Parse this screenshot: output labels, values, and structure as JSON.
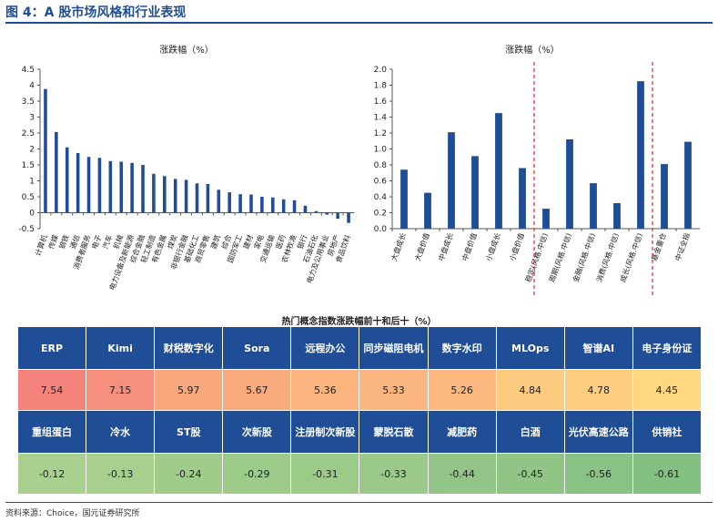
{
  "figure_title": "图 4：A 股市场风格和行业表现",
  "source": "资料来源：Choice，国元证券研究所",
  "chart_data": [
    {
      "type": "bar",
      "title": "涨跌幅（%）",
      "categories": [
        "计算机",
        "传媒",
        "钢铁",
        "通信",
        "消费者服务",
        "电子",
        "汽车",
        "机械",
        "电力设备及新能源",
        "综合金融",
        "轻工制造",
        "有色金属",
        "煤炭",
        "非银行金融",
        "基础化工",
        "商贸零售",
        "建筑",
        "综合",
        "国防军工",
        "建材",
        "家电",
        "交通运输",
        "医药",
        "农林牧渔",
        "银行",
        "石油石化",
        "电力及公用事业",
        "房地产",
        "食品饮料"
      ],
      "values": [
        3.88,
        2.53,
        2.05,
        1.87,
        1.75,
        1.72,
        1.62,
        1.6,
        1.56,
        1.5,
        1.22,
        1.15,
        1.06,
        1.03,
        0.92,
        0.9,
        0.72,
        0.64,
        0.58,
        0.57,
        0.5,
        0.48,
        0.42,
        0.39,
        0.22,
        0.05,
        -0.06,
        -0.19,
        -0.32
      ],
      "ylim": [
        -0.5,
        4.5
      ],
      "yticks": [
        "-0.5",
        "0",
        "0.5",
        "1",
        "1.5",
        "2",
        "2.5",
        "3",
        "3.5",
        "4",
        "4.5"
      ],
      "color": "#1f4e96"
    },
    {
      "type": "bar",
      "title": "涨跌幅（%）",
      "categories": [
        "大盘成长",
        "大盘价值",
        "中盘成长",
        "中盘价值",
        "小盘成长",
        "小盘价值",
        "稳定(风格.中信)",
        "周期(风格.中信)",
        "金融(风格.中信)",
        "消费(风格.中信)",
        "成长(风格.中信)",
        "基金重仓",
        "中证全指"
      ],
      "values": [
        0.74,
        0.45,
        1.21,
        0.91,
        1.45,
        0.76,
        0.25,
        1.12,
        0.57,
        0.32,
        1.85,
        0.81,
        1.09
      ],
      "ylim": [
        0,
        2.0
      ],
      "yticks": [
        "0.0",
        "0.2",
        "0.4",
        "0.6",
        "0.8",
        "1.0",
        "1.2",
        "1.4",
        "1.6",
        "1.8",
        "2.0"
      ],
      "color": "#1f4e96",
      "divider_color": "#d9262b"
    }
  ],
  "table": {
    "title": "热门概念指数涨跌幅前十和后十（%）",
    "top_names": [
      "ERP",
      "Kimi",
      "财税数字化",
      "Sora",
      "远程办公",
      "同步磁阻电机",
      "数字水印",
      "MLOps",
      "智谱AI",
      "电子身份证"
    ],
    "top_values": [
      "7.54",
      "7.15",
      "5.97",
      "5.67",
      "5.36",
      "5.33",
      "5.26",
      "4.84",
      "4.78",
      "4.45"
    ],
    "top_colors": [
      "#f4837b",
      "#f68f7b",
      "#f9a77c",
      "#faab7d",
      "#fbb47e",
      "#fbb57e",
      "#fcb87f",
      "#fdcb80",
      "#fecd80",
      "#ffd781"
    ],
    "bottom_names": [
      "重组蛋白",
      "冷水",
      "ST股",
      "次新股",
      "注册制次新股",
      "蒙脱石散",
      "减肥药",
      "白酒",
      "光伏高速公路",
      "供销社"
    ],
    "bottom_values": [
      "-0.12",
      "-0.13",
      "-0.24",
      "-0.29",
      "-0.31",
      "-0.33",
      "-0.44",
      "-0.45",
      "-0.56",
      "-0.61"
    ],
    "bottom_colors": [
      "#a9d08e",
      "#a7cf8d",
      "#a0cc8b",
      "#9dcb8a",
      "#9bca89",
      "#9ac989",
      "#92c587",
      "#91c586",
      "#89c284",
      "#84c082"
    ]
  }
}
